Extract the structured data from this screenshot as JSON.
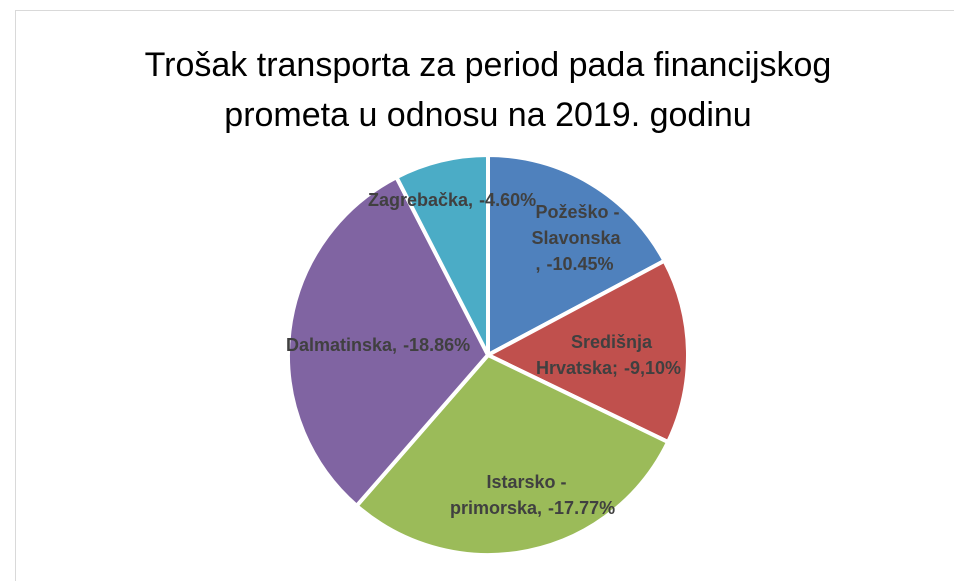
{
  "chart_data": {
    "type": "pie",
    "title": "Trošak transporta za period pada financijskog prometa u odnosu na 2019. godinu",
    "categories": [
      "Požeško - Slavonska ,",
      "Središnja Hrvatska;",
      "Istarsko - primorska,",
      "Dalmatinska,",
      "Zagrebačka,"
    ],
    "values": [
      -10.45,
      -9.1,
      -17.77,
      -18.86,
      -4.6
    ],
    "value_labels": [
      "-10.45%",
      "-9,10%",
      "-17.77%",
      "-18.86%",
      "-4.60%"
    ],
    "colors": [
      "#4f81bd",
      "#c0504d",
      "#9bbb59",
      "#8064a2",
      "#4bacc6"
    ]
  }
}
